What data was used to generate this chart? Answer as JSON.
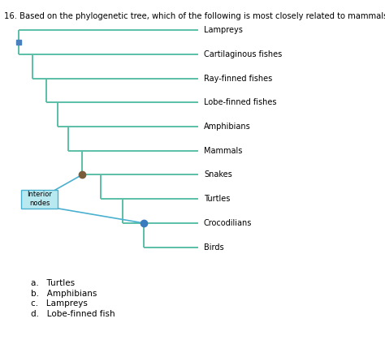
{
  "title": "16. Based on the phylogenetic tree, which of the following is most closely related to mammals?",
  "title_fontsize": 7.2,
  "taxa": [
    "Lampreys",
    "Cartilaginous fishes",
    "Ray-finned fishes",
    "Lobe-finned fishes",
    "Amphibians",
    "Mammals",
    "Snakes",
    "Turtles",
    "Crocodilians",
    "Birds"
  ],
  "tree_color": "#5bbfa8",
  "node_color_brown": "#7a5c3a",
  "node_color_blue": "#3a7abf",
  "interior_box_color": "#b8e8f0",
  "interior_box_edge": "#4ab0d0",
  "interior_box_text": "Interior\nnodes",
  "answer_options": [
    "a.   Turtles",
    "b.   Amphibians",
    "c.   Lampreys",
    "d.   Lobe-finned fish"
  ],
  "bg_color": "#ffffff",
  "label_fontsize": 7.0,
  "answer_fontsize": 7.5
}
